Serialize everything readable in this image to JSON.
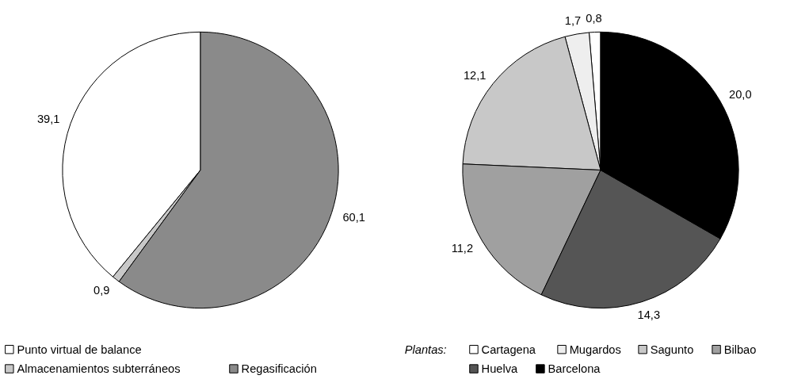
{
  "chart_data": [
    {
      "type": "pie",
      "categories": [
        "Punto virtual de balance",
        "Almacenamientos subterráneos",
        "Regasificación"
      ],
      "values": [
        39.1,
        0.9,
        60.1
      ],
      "value_labels": [
        "39,1",
        "0,9",
        "60,1"
      ],
      "colors": [
        "#ffffff",
        "#c8c8c8",
        "#8a8a8a"
      ],
      "legend": "bottom"
    },
    {
      "type": "pie",
      "legend_title": "Plantas:",
      "categories": [
        "Cartagena",
        "Mugardos",
        "Sagunto",
        "Bilbao",
        "Huelva",
        "Barcelona"
      ],
      "values": [
        0.8,
        1.7,
        12.1,
        11.2,
        14.3,
        20.0
      ],
      "value_labels": [
        "0,8",
        "1,7",
        "12,1",
        "11,2",
        "14,3",
        "20,0"
      ],
      "colors": [
        "#ffffff",
        "#eeeeee",
        "#c8c8c8",
        "#a0a0a0",
        "#555555",
        "#000000"
      ],
      "legend": "bottom"
    }
  ]
}
